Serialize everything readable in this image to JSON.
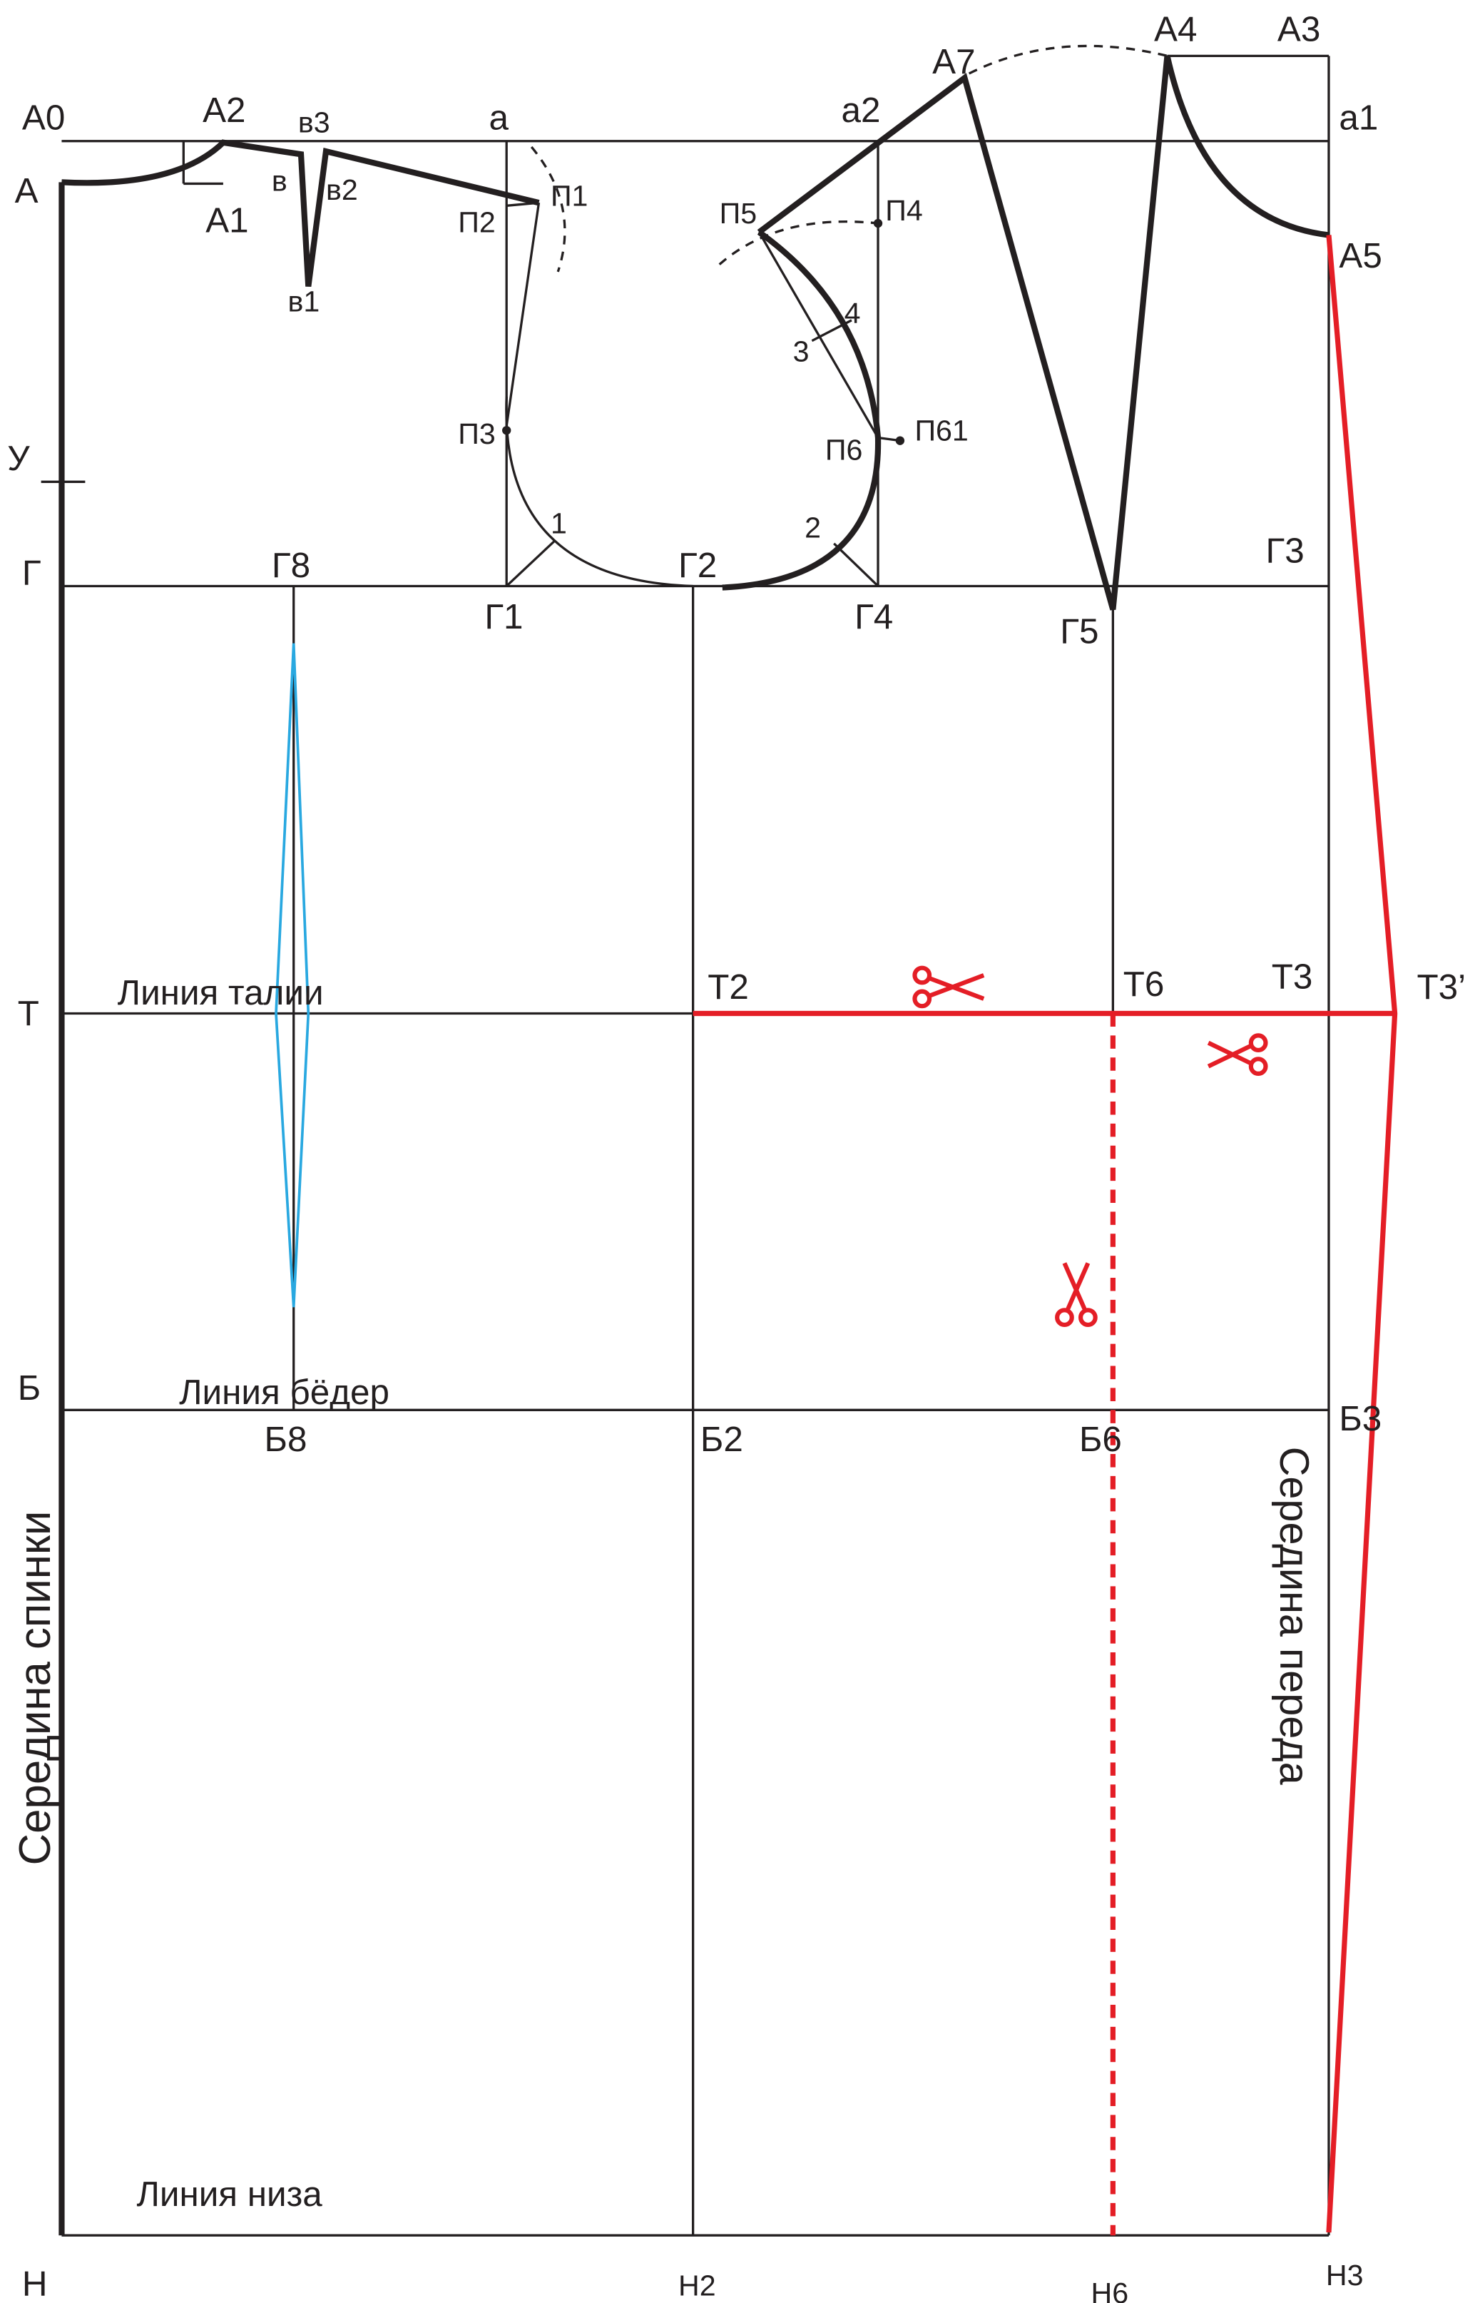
{
  "points": {
    "a0": "А0",
    "a2": "А2",
    "v3": "в3",
    "a_small": "а",
    "a2_small": "а2",
    "a7": "А7",
    "a4": "А4",
    "a3": "А3",
    "a1_small": "а1",
    "a": "А",
    "a1": "А1",
    "v": "в",
    "v2": "в2",
    "p1": "П1",
    "p2": "П2",
    "p5": "П5",
    "p4": "П4",
    "a5": "А5",
    "v1": "в1",
    "n4": "4",
    "n3": "3",
    "u": "У",
    "p3": "П3",
    "p6": "П6",
    "p61": "П61",
    "n1": "1",
    "n2": "2",
    "g3": "Г3",
    "g": "Г",
    "g8": "Г8",
    "g2": "Г2",
    "g1": "Г1",
    "g4": "Г4",
    "g5": "Г5",
    "t2": "Т2",
    "t6": "Т6",
    "t3": "Т3",
    "t3p": "Т3’",
    "t": "Т",
    "b": "Б",
    "b8": "Б8",
    "b2": "Б2",
    "b6": "Б6",
    "b3": "Б3",
    "n": "Н",
    "n2h": "Н2",
    "n6": "Н6",
    "n3h": "Н3"
  },
  "lines": {
    "waist": "Линия талии",
    "hips": "Линия бёдер",
    "hem": "Линия низа"
  },
  "sides": {
    "back": "Середина спинки",
    "front": "Середина переда"
  }
}
